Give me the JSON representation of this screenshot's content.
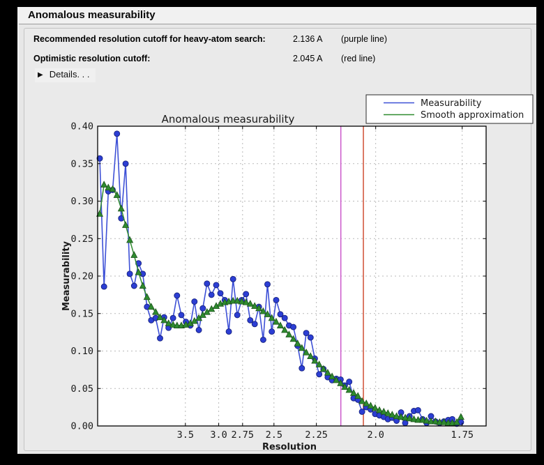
{
  "header": {
    "title": "Anomalous measurability"
  },
  "summary": {
    "rows": [
      {
        "label": "Recommended resolution cutoff for heavy-atom search:",
        "value": "2.136 A",
        "note": "(purple line)"
      },
      {
        "label": "Optimistic resolution cutoff:",
        "value": "2.045 A",
        "note": "(red line)"
      }
    ],
    "details_label": "Details. . .",
    "disclosure_icon": "▶"
  },
  "chart_data": {
    "type": "line",
    "title": "Anomalous measurability",
    "xlabel": "Resolution",
    "ylabel": "Measurability",
    "grid": true,
    "legend_position": "upper right",
    "x_axis": {
      "scale": "1/d^2 (resolution in Angstrom, decreasing d left to right)",
      "ticks": [
        3.5,
        3.0,
        2.75,
        2.5,
        2.25,
        2.0,
        1.75
      ],
      "tick_labels": [
        "3.5",
        "3.0",
        "2.75",
        "2.5",
        "2.25",
        "2.0",
        "1.75"
      ]
    },
    "y_axis": {
      "range": [
        0.0,
        0.4
      ],
      "ticks": [
        0.0,
        0.05,
        0.1,
        0.15,
        0.2,
        0.25,
        0.3,
        0.35,
        0.4
      ],
      "tick_labels": [
        "0.00",
        "0.05",
        "0.10",
        "0.15",
        "0.20",
        "0.25",
        "0.30",
        "0.35",
        "0.40"
      ]
    },
    "vlines": [
      {
        "x": 2.136,
        "color": "#c94fc9",
        "name": "recommended-cutoff-purple-line"
      },
      {
        "x": 2.045,
        "color": "#cc4125",
        "name": "optimistic-cutoff-red-line"
      }
    ],
    "x": [
      13.07,
      10.18,
      8.62,
      7.61,
      6.89,
      6.34,
      5.9,
      5.55,
      5.25,
      4.99,
      4.77,
      4.58,
      4.41,
      4.25,
      4.11,
      3.99,
      3.87,
      3.76,
      3.67,
      3.58,
      3.49,
      3.41,
      3.34,
      3.27,
      3.21,
      3.15,
      3.09,
      3.03,
      2.98,
      2.93,
      2.886,
      2.842,
      2.8,
      2.758,
      2.719,
      2.682,
      2.645,
      2.611,
      2.578,
      2.546,
      2.515,
      2.485,
      2.457,
      2.429,
      2.402,
      2.376,
      2.351,
      2.327,
      2.303,
      2.28,
      2.258,
      2.236,
      2.215,
      2.195,
      2.175,
      2.156,
      2.137,
      2.119,
      2.101,
      2.083,
      2.066,
      2.05,
      2.034,
      2.018,
      2.002,
      1.987,
      1.972,
      1.958,
      1.944,
      1.93,
      1.916,
      1.903,
      1.89,
      1.877,
      1.865,
      1.852,
      1.841,
      1.829,
      1.817,
      1.806,
      1.795,
      1.784,
      1.774,
      1.763,
      1.753
    ],
    "series": [
      {
        "name": "Measurability",
        "color": "#3d50d6",
        "marker": "circle",
        "values": [
          0.357,
          0.186,
          0.313,
          0.315,
          0.39,
          0.277,
          0.35,
          0.203,
          0.187,
          0.217,
          0.203,
          0.159,
          0.141,
          0.144,
          0.117,
          0.145,
          0.131,
          0.144,
          0.174,
          0.148,
          0.139,
          0.134,
          0.166,
          0.128,
          0.157,
          0.19,
          0.175,
          0.188,
          0.177,
          0.168,
          0.126,
          0.196,
          0.148,
          0.168,
          0.176,
          0.141,
          0.136,
          0.159,
          0.115,
          0.189,
          0.126,
          0.168,
          0.149,
          0.144,
          0.134,
          0.132,
          0.107,
          0.077,
          0.124,
          0.118,
          0.09,
          0.069,
          0.076,
          0.065,
          0.061,
          0.063,
          0.062,
          0.054,
          0.059,
          0.037,
          0.035,
          0.019,
          0.025,
          0.022,
          0.016,
          0.014,
          0.012,
          0.009,
          0.011,
          0.007,
          0.018,
          0.004,
          0.013,
          0.02,
          0.021,
          0.009,
          0.004,
          0.013,
          0.006,
          0.004,
          0.006,
          0.008,
          0.009,
          0.003,
          0.005
        ]
      },
      {
        "name": "Smooth approximation",
        "color": "#2f8b2f",
        "marker": "triangle",
        "values": [
          0.283,
          0.322,
          0.318,
          0.316,
          0.308,
          0.29,
          0.268,
          0.248,
          0.228,
          0.205,
          0.187,
          0.172,
          0.159,
          0.152,
          0.145,
          0.141,
          0.137,
          0.135,
          0.134,
          0.134,
          0.135,
          0.137,
          0.14,
          0.144,
          0.148,
          0.152,
          0.156,
          0.16,
          0.163,
          0.165,
          0.166,
          0.167,
          0.167,
          0.166,
          0.165,
          0.163,
          0.16,
          0.157,
          0.153,
          0.149,
          0.144,
          0.139,
          0.134,
          0.128,
          0.122,
          0.116,
          0.11,
          0.104,
          0.098,
          0.093,
          0.087,
          0.082,
          0.076,
          0.071,
          0.066,
          0.061,
          0.057,
          0.052,
          0.048,
          0.044,
          0.04,
          0.033,
          0.03,
          0.027,
          0.024,
          0.021,
          0.019,
          0.017,
          0.015,
          0.013,
          0.012,
          0.011,
          0.01,
          0.009,
          0.008,
          0.008,
          0.007,
          0.006,
          0.006,
          0.005,
          0.005,
          0.004,
          0.004,
          0.005,
          0.012
        ]
      }
    ],
    "colors": {
      "plot_bg": "#ffffff",
      "figure_bg": "#eaeaea",
      "grid": "#b9b9b9",
      "frame": "#000000",
      "blue_marker": "#2c3ed4",
      "blue_marker_edge": "#17227e",
      "green_marker_edge": "#1b521b"
    }
  }
}
